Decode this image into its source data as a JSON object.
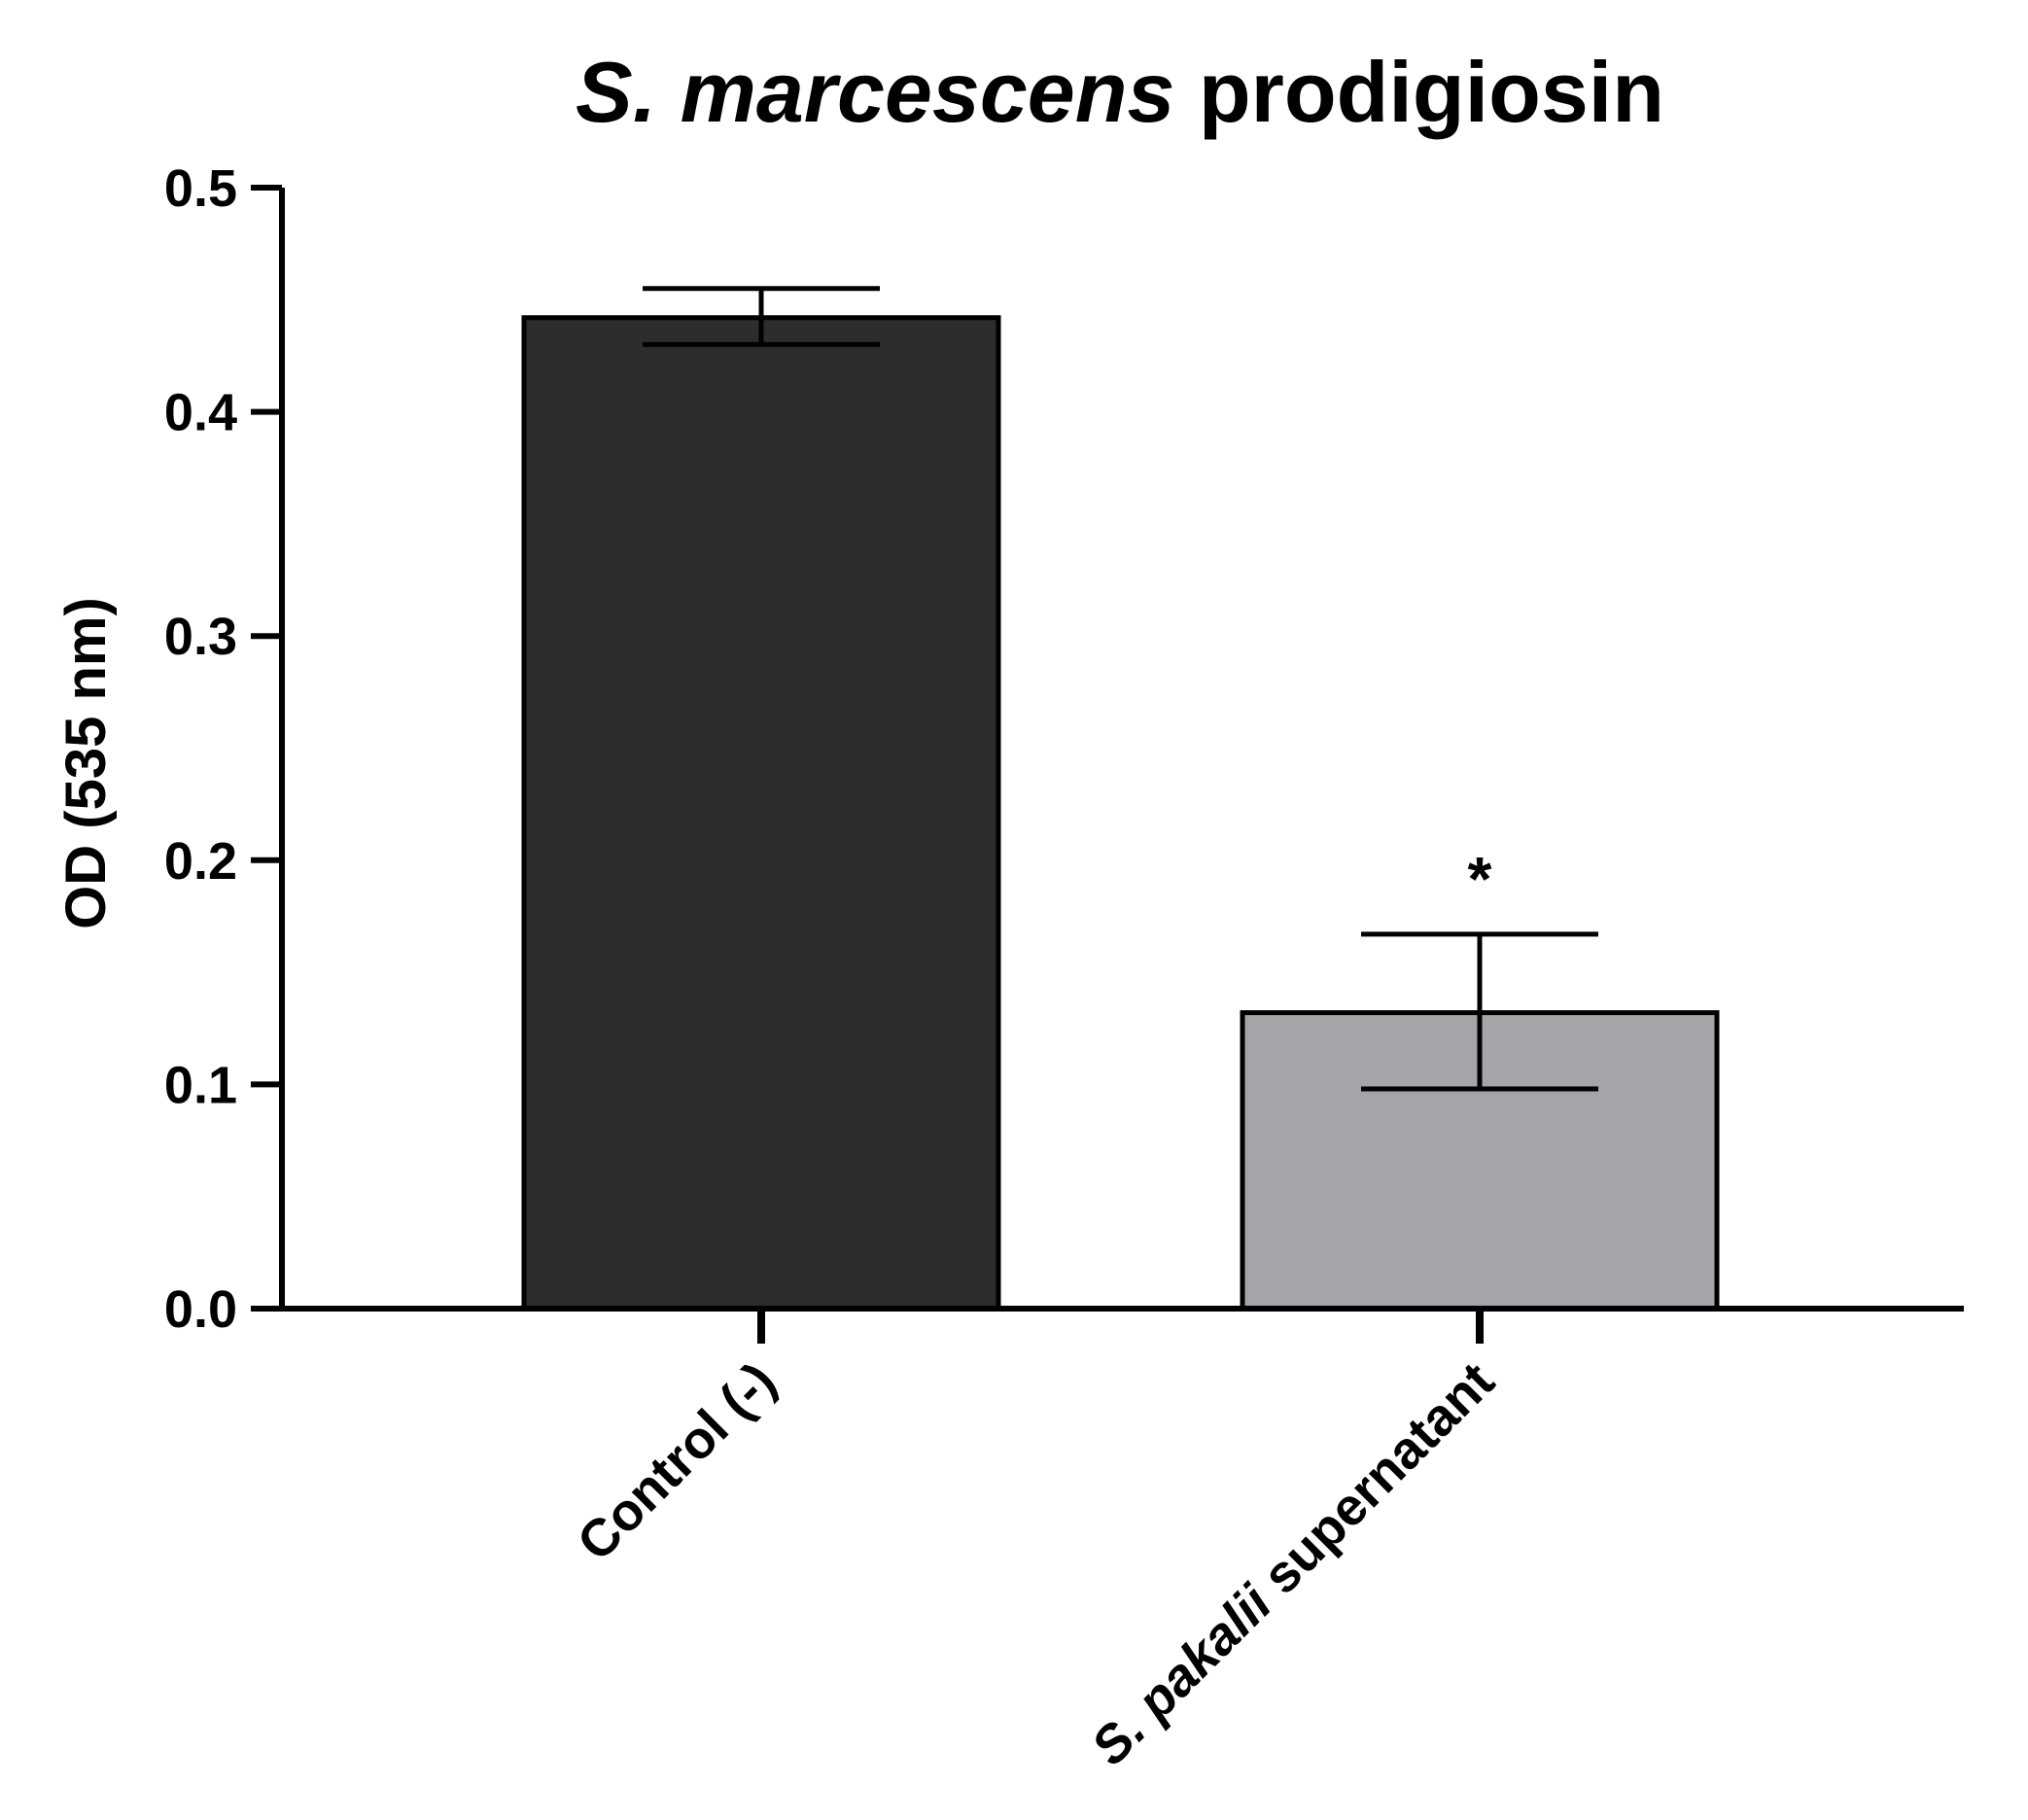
{
  "chart_data": {
    "type": "bar",
    "title_italic": "S. marcescens",
    "title_regular": " prodigiosin",
    "xlabel": "",
    "ylabel": "OD (535 nm)",
    "ylim": [
      0,
      0.5
    ],
    "yticks": [
      "0.0",
      "0.1",
      "0.2",
      "0.3",
      "0.4",
      "0.5"
    ],
    "categories": [
      {
        "italic": "",
        "regular": "Control (-)"
      },
      {
        "italic": "S. pakalii",
        "regular": " supernatant"
      }
    ],
    "values": [
      0.442,
      0.132
    ],
    "error_low": [
      0.43,
      0.098
    ],
    "error_high": [
      0.455,
      0.167
    ],
    "annotations": [
      "",
      "*"
    ],
    "bar_colors": [
      "#2d2d2d",
      "#a5a4a8"
    ],
    "axis_color": "#000000",
    "grid": false,
    "legend": "none"
  }
}
